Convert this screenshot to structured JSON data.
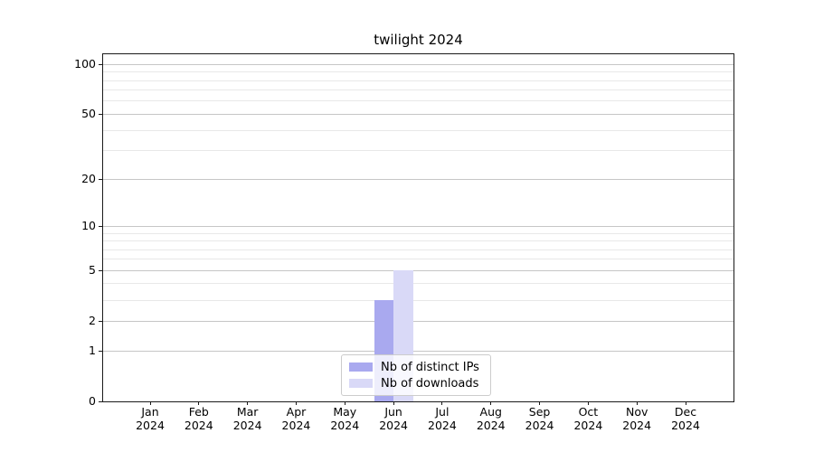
{
  "chart_data": {
    "type": "bar",
    "title": "twilight 2024",
    "categories": [
      "Jan 2024",
      "Feb 2024",
      "Mar 2024",
      "Apr 2024",
      "May 2024",
      "Jun 2024",
      "Jul 2024",
      "Aug 2024",
      "Sep 2024",
      "Oct 2024",
      "Nov 2024",
      "Dec 2024"
    ],
    "x_tick_months": [
      "Jan",
      "Feb",
      "Mar",
      "Apr",
      "May",
      "Jun",
      "Jul",
      "Aug",
      "Sep",
      "Oct",
      "Nov",
      "Dec"
    ],
    "x_tick_year": "2024",
    "series": [
      {
        "name": "Nb of distinct IPs",
        "color": "#a9a9ef",
        "values": [
          0,
          0,
          0,
          0,
          0,
          3,
          0,
          0,
          0,
          0,
          0,
          0
        ]
      },
      {
        "name": "Nb of downloads",
        "color": "#d9d9f7",
        "values": [
          0,
          0,
          0,
          0,
          0,
          5,
          0,
          0,
          0,
          0,
          0,
          0
        ]
      }
    ],
    "y_axis": {
      "scale": "log1p",
      "major_ticks": [
        0,
        1,
        2,
        5,
        10,
        20,
        50,
        100
      ],
      "major_tick_labels": [
        "0",
        "1",
        "2",
        "5",
        "10",
        "20",
        "50",
        "100"
      ],
      "minor_ticks": [
        3,
        4,
        6,
        7,
        8,
        9,
        30,
        40,
        60,
        70,
        80,
        90
      ],
      "range": [
        0,
        115
      ]
    },
    "legend": {
      "position": "lower center"
    },
    "grid": true
  },
  "colors": {
    "background": "#ffffff",
    "spine": "#1a1a1a",
    "grid_major": "#c6c6c6",
    "grid_minor": "#e8e8e8",
    "text": "#000000",
    "bar_distinct_ips": "#a9a9ef",
    "bar_downloads": "#d9d9f7"
  }
}
